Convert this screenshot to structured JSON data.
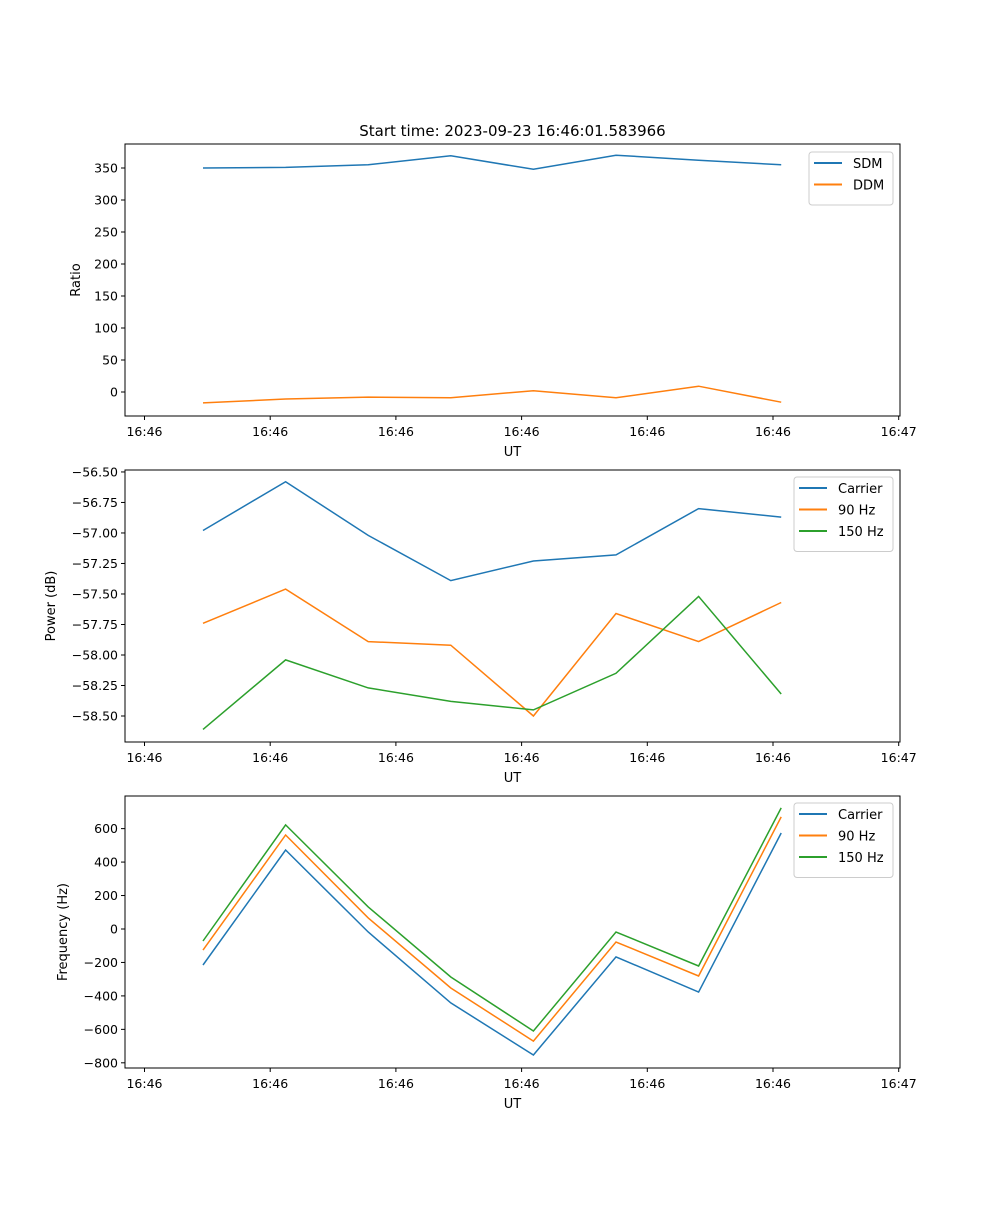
{
  "chart_data": [
    {
      "type": "line",
      "title": "Start time: 2023-09-23 16:46:01.583966",
      "xlabel": "UT",
      "ylabel": "Ratio",
      "x_ticks": [
        "16:46",
        "16:46",
        "16:46",
        "16:46",
        "16:46",
        "16:46",
        "16:47"
      ],
      "y_ticks": [
        0,
        50,
        100,
        150,
        200,
        250,
        300,
        350
      ],
      "ylim": [
        -37.5,
        387.5
      ],
      "legend_position": "upper-right",
      "series": [
        {
          "name": "SDM",
          "color": "#1f77b4",
          "values": [
            350,
            351,
            355,
            369,
            348,
            370,
            362,
            355
          ]
        },
        {
          "name": "DDM",
          "color": "#ff7f0e",
          "values": [
            -17,
            -11,
            -8,
            -9,
            2,
            -9,
            9,
            -16
          ]
        }
      ]
    },
    {
      "type": "line",
      "title": "",
      "xlabel": "UT",
      "ylabel": "Power (dB)",
      "x_ticks": [
        "16:46",
        "16:46",
        "16:46",
        "16:46",
        "16:46",
        "16:46",
        "16:47"
      ],
      "y_ticks": [
        -58.5,
        -58.25,
        -58.0,
        -57.75,
        -57.5,
        -57.25,
        -57.0,
        -56.75,
        -56.5
      ],
      "y_tick_labels": [
        "−58.50",
        "−58.25",
        "−58.00",
        "−57.75",
        "−57.50",
        "−57.25",
        "−57.00",
        "−56.75",
        "−56.50"
      ],
      "ylim": [
        -58.713,
        -56.484
      ],
      "legend_position": "upper-right",
      "series": [
        {
          "name": "Carrier",
          "color": "#1f77b4",
          "values": [
            -56.98,
            -56.58,
            -57.02,
            -57.39,
            -57.23,
            -57.18,
            -56.8,
            -56.87
          ]
        },
        {
          "name": "90 Hz",
          "color": "#ff7f0e",
          "values": [
            -57.74,
            -57.46,
            -57.89,
            -57.92,
            -58.5,
            -57.66,
            -57.89,
            -57.57
          ]
        },
        {
          "name": "150 Hz",
          "color": "#2ca02c",
          "values": [
            -58.61,
            -58.04,
            -58.27,
            -58.38,
            -58.45,
            -58.15,
            -57.52,
            -58.32
          ]
        }
      ]
    },
    {
      "type": "line",
      "title": "",
      "xlabel": "UT",
      "ylabel": "Frequency (Hz)",
      "x_ticks": [
        "16:46",
        "16:46",
        "16:46",
        "16:46",
        "16:46",
        "16:46",
        "16:47"
      ],
      "y_ticks": [
        -800,
        -600,
        -400,
        -200,
        0,
        200,
        400,
        600
      ],
      "y_tick_labels": [
        "−800",
        "−600",
        "−400",
        "−200",
        "0",
        "200",
        "400",
        "600"
      ],
      "ylim": [
        -831,
        795
      ],
      "legend_position": "upper-right",
      "series": [
        {
          "name": "Carrier",
          "color": "#1f77b4",
          "values": [
            -215,
            472,
            -18,
            -442,
            -753,
            -167,
            -377,
            574
          ]
        },
        {
          "name": "90 Hz",
          "color": "#ff7f0e",
          "values": [
            -126,
            562,
            66,
            -353,
            -670,
            -78,
            -281,
            670
          ]
        },
        {
          "name": "150 Hz",
          "color": "#2ca02c",
          "values": [
            -72,
            622,
            132,
            -287,
            -610,
            -18,
            -221,
            724
          ]
        }
      ]
    }
  ]
}
